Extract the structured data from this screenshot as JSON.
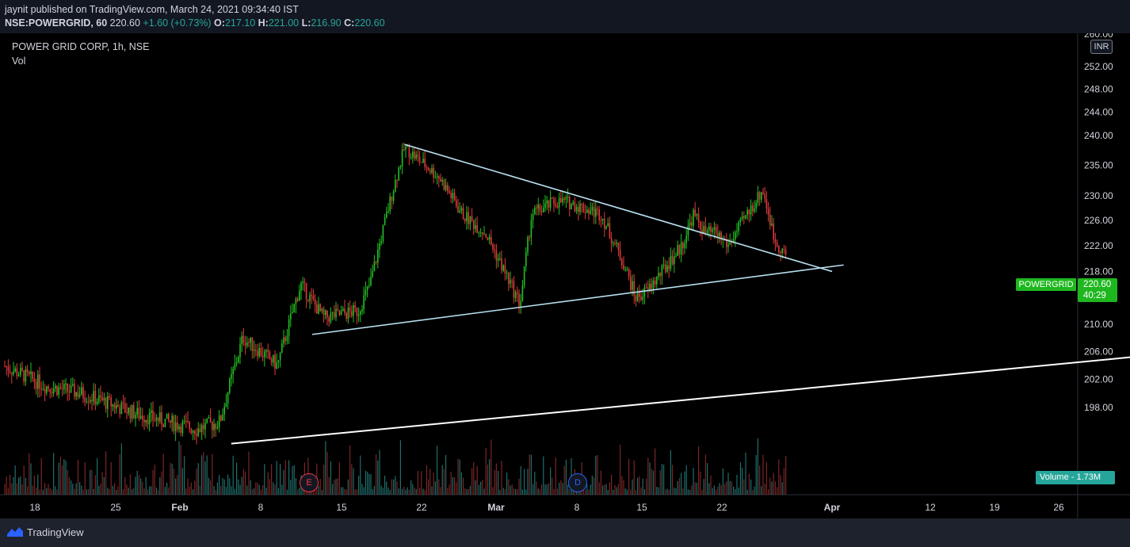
{
  "header": {
    "publish_line": "jaynit published on TradingView.com, March 24, 2021 09:34:40 IST",
    "ticker": "NSE:POWERGRID, 60",
    "last": "220.60",
    "change": "+1.60 (+0.73%)",
    "o_label": "O:",
    "o_value": "217.10",
    "h_label": "H:",
    "h_value": "221.00",
    "l_label": "L:",
    "l_value": "216.90",
    "c_label": "C:",
    "c_value": "220.60"
  },
  "legend": {
    "title": "POWER GRID CORP, 1h, NSE",
    "volume_label": "Vol"
  },
  "price_scale": {
    "currency": "INR",
    "top_partial_label": "260.00",
    "ticks": [
      252,
      248,
      244,
      240,
      235,
      230,
      226,
      222,
      218,
      214,
      210,
      206,
      202,
      198
    ],
    "tick_labels": [
      "252.00",
      "248.00",
      "244.00",
      "240.00",
      "235.00",
      "230.00",
      "226.00",
      "222.00",
      "218.00",
      "214.00",
      "210.00",
      "206.00",
      "202.00",
      "198.00"
    ],
    "log_scale": true
  },
  "price_tag": {
    "symbol": "POWERGRID",
    "price": "220.60",
    "countdown": "40:29"
  },
  "volume_tag": {
    "label": "Volume",
    "value": "1.73M"
  },
  "events": [
    {
      "letter": "E",
      "color": "#f23645",
      "date": "Feb 11"
    },
    {
      "letter": "D",
      "color": "#2962ff",
      "date": "Mar 8"
    }
  ],
  "footer": {
    "brand": "TradingView"
  },
  "chart_data": {
    "type": "line",
    "description_free": true,
    "x_tick_labels": [
      "18",
      "25",
      "Feb",
      "8",
      "15",
      "22",
      "Mar",
      "8",
      "15",
      "22",
      "Apr",
      "12",
      "19",
      "26"
    ],
    "y_range": [
      198,
      260
    ],
    "series": [
      {
        "name": "POWERGRID",
        "x": [
          "Jan 14",
          "Jan 19",
          "Jan 22",
          "Jan 27",
          "Feb 1",
          "Feb 3",
          "Feb 5",
          "Feb 8",
          "Feb 10",
          "Feb 12",
          "Feb 15",
          "Feb 16",
          "Feb 18",
          "Feb 19",
          "Feb 22",
          "Feb 24",
          "Feb 26",
          "Mar 1",
          "Mar 2",
          "Mar 4",
          "Mar 5",
          "Mar 8",
          "Mar 10",
          "Mar 11",
          "Mar 12",
          "Mar 15",
          "Mar 16",
          "Mar 17",
          "Mar 18",
          "Mar 19",
          "Mar 22",
          "Mar 23",
          "Mar 24"
        ],
        "values": [
          205,
          201,
          200,
          197,
          195,
          196,
          208,
          204,
          216,
          211,
          212,
          216,
          231,
          238,
          233,
          227,
          224,
          213,
          227,
          229,
          229,
          227,
          219,
          214,
          215,
          222,
          227,
          224,
          224,
          222,
          231,
          223,
          220.6
        ]
      }
    ],
    "trendlines": [
      {
        "name": "upper",
        "from": [
          "Feb 19",
          238.5
        ],
        "to": [
          "Mar 28",
          218.0
        ]
      },
      {
        "name": "lower",
        "from": [
          "Feb 11",
          208.5
        ],
        "to": [
          "Mar 29",
          219.0
        ]
      },
      {
        "name": "long-support",
        "from": [
          "Feb 4",
          193.0
        ],
        "to": [
          "Apr 28",
          206.0
        ]
      }
    ],
    "grid": false,
    "legend": "none"
  }
}
